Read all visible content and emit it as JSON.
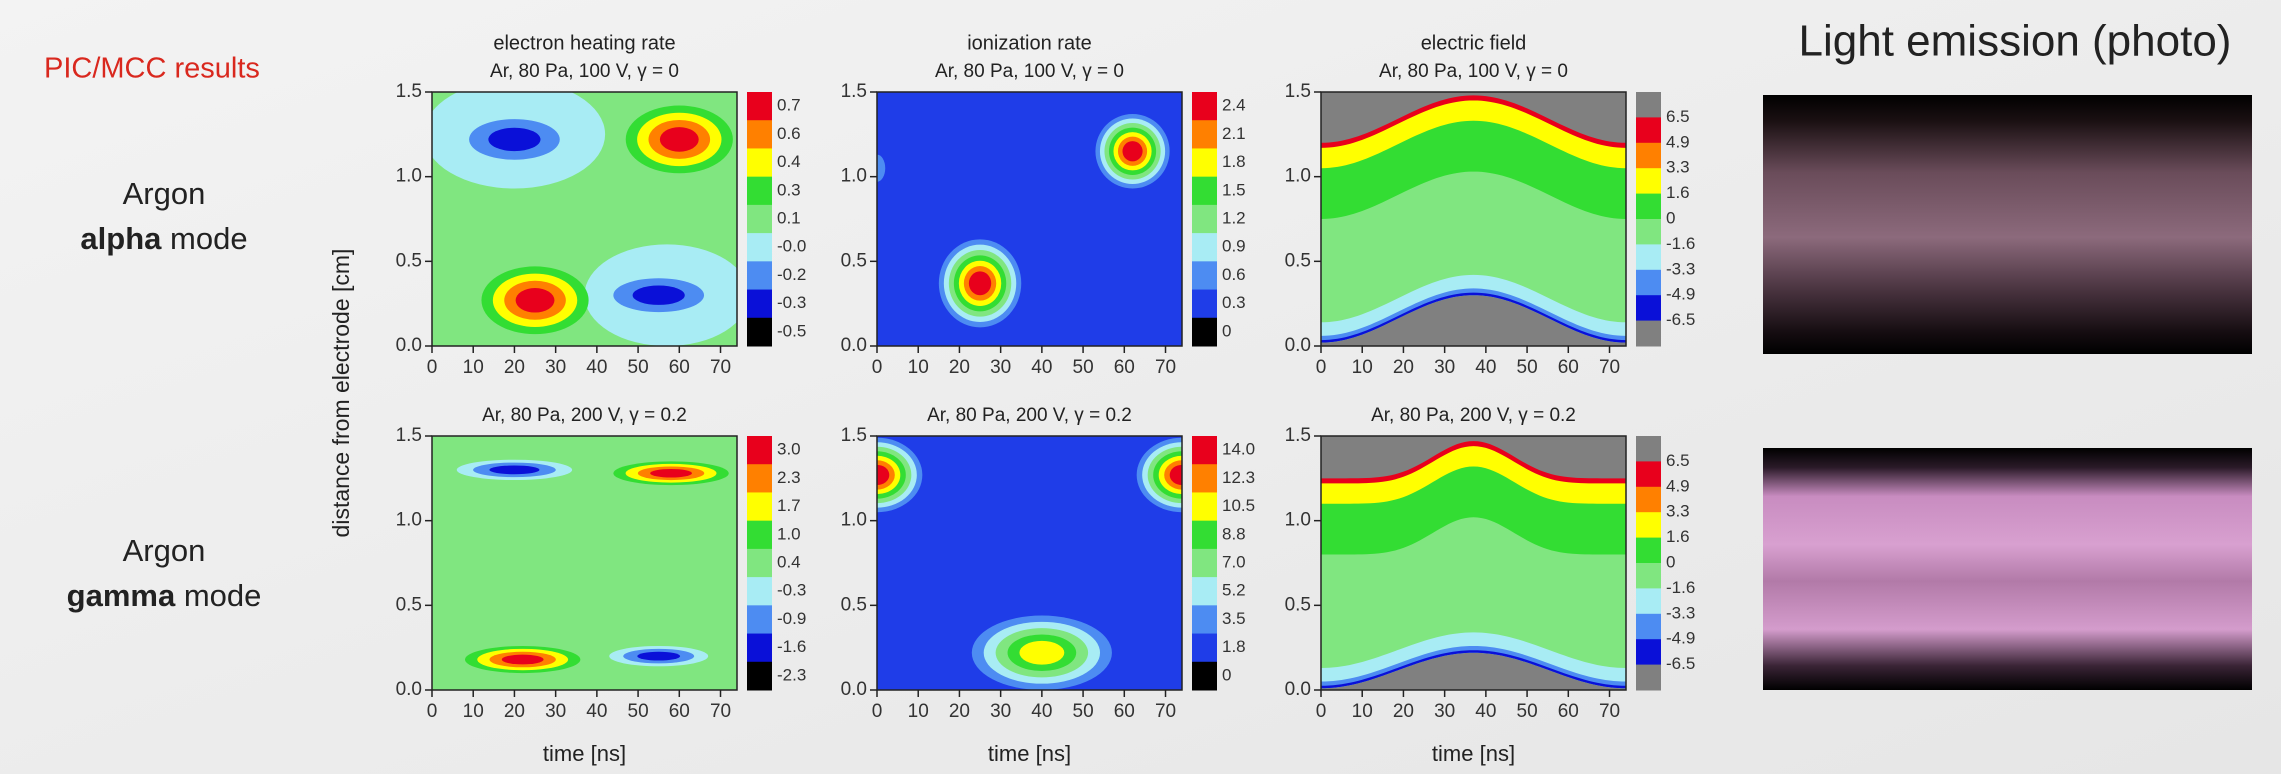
{
  "slide": {
    "label": "PIC/MCC results",
    "photo_title": "Light emission (photo)",
    "y_label": "distance from electrode [cm]",
    "rows": [
      {
        "gas": "Argon",
        "mode": "alpha",
        "suffix": "mode"
      },
      {
        "gas": "Argon",
        "mode": "gamma",
        "suffix": "mode"
      }
    ]
  },
  "chart_data": [
    {
      "type": "contour",
      "title": "electron heating rate",
      "subtitle": "Ar, 80 Pa, 100 V, γ = 0",
      "xlim": [
        0,
        74
      ],
      "xticks": [
        0,
        10,
        20,
        30,
        40,
        50,
        60,
        70
      ],
      "ylim": [
        0,
        1.5
      ],
      "yticks": [
        {
          "value": 0,
          "label": "0.0"
        },
        {
          "value": 0.5,
          "label": "0.5"
        },
        {
          "value": 1,
          "label": "1.0"
        },
        {
          "value": 1.5,
          "label": "1.5"
        }
      ],
      "colorbar": {
        "ticks": [
          0.7,
          0.6,
          0.4,
          0.3,
          0.1,
          "-0.0",
          -0.2,
          -0.3,
          -0.5
        ],
        "colors": [
          "#e8001c",
          "#ff8000",
          "#ffff00",
          "#33dd33",
          "#80e680",
          "#a8ecf4",
          "#4d8cf2",
          "#0a10d8",
          "#000000"
        ]
      }
    },
    {
      "type": "contour",
      "title": "ionization rate",
      "subtitle": "Ar, 80 Pa, 100 V, γ = 0",
      "xlim": [
        0,
        74
      ],
      "xticks": [
        0,
        10,
        20,
        30,
        40,
        50,
        60,
        70
      ],
      "ylim": [
        0,
        1.5
      ],
      "yticks": [
        {
          "value": 0,
          "label": "0.0"
        },
        {
          "value": 0.5,
          "label": "0.5"
        },
        {
          "value": 1,
          "label": "1.0"
        },
        {
          "value": 1.5,
          "label": "1.5"
        }
      ],
      "colorbar": {
        "ticks": [
          2.4,
          2.1,
          1.8,
          1.5,
          1.2,
          0.9,
          0.6,
          0.3,
          0
        ],
        "colors": [
          "#e8001c",
          "#ff8000",
          "#ffff00",
          "#33dd33",
          "#80e680",
          "#a8ecf4",
          "#4d8cf2",
          "#1f3de8",
          "#000000"
        ]
      }
    },
    {
      "type": "field",
      "title": "electric field",
      "subtitle": "Ar, 80 Pa, 100 V, γ = 0",
      "xlim": [
        0,
        74
      ],
      "xticks": [
        0,
        10,
        20,
        30,
        40,
        50,
        60,
        70
      ],
      "ylim": [
        0,
        1.5
      ],
      "yticks": [
        {
          "value": 0,
          "label": "0.0"
        },
        {
          "value": 0.5,
          "label": "0.5"
        },
        {
          "value": 1,
          "label": "1.0"
        },
        {
          "value": 1.5,
          "label": "1.5"
        }
      ],
      "colorbar": {
        "ticks": [
          6.5,
          4.9,
          3.3,
          1.6,
          0,
          -1.6,
          -3.3,
          -4.9,
          -6.5
        ],
        "colors": [
          "#808080",
          "#e8001c",
          "#ff8000",
          "#ffff00",
          "#33dd33",
          "#80e680",
          "#a8ecf4",
          "#4d8cf2",
          "#0a10d8",
          "#808080"
        ]
      }
    },
    {
      "type": "contour",
      "subtitle": "Ar, 80 Pa, 200 V, γ = 0.2",
      "x_label": "time [ns]",
      "xlim": [
        0,
        74
      ],
      "xticks": [
        0,
        10,
        20,
        30,
        40,
        50,
        60,
        70
      ],
      "ylim": [
        0,
        1.5
      ],
      "yticks": [
        {
          "value": 0,
          "label": "0.0"
        },
        {
          "value": 0.5,
          "label": "0.5"
        },
        {
          "value": 1,
          "label": "1.0"
        },
        {
          "value": 1.5,
          "label": "1.5"
        }
      ],
      "colorbar": {
        "ticks": [
          {
            "value": 3,
            "label": "3.0"
          },
          2.3,
          1.7,
          {
            "value": 1,
            "label": "1.0"
          },
          0.4,
          -0.3,
          -0.9,
          -1.6,
          -2.3
        ],
        "colors": [
          "#e8001c",
          "#ff8000",
          "#ffff00",
          "#33dd33",
          "#80e680",
          "#a8ecf4",
          "#4d8cf2",
          "#0a10d8",
          "#000000"
        ]
      }
    },
    {
      "type": "contour",
      "subtitle": "Ar, 80 Pa, 200 V, γ = 0.2",
      "x_label": "time [ns]",
      "xlim": [
        0,
        74
      ],
      "xticks": [
        0,
        10,
        20,
        30,
        40,
        50,
        60,
        70
      ],
      "ylim": [
        0,
        1.5
      ],
      "yticks": [
        {
          "value": 0,
          "label": "0.0"
        },
        {
          "value": 0.5,
          "label": "0.5"
        },
        {
          "value": 1,
          "label": "1.0"
        },
        {
          "value": 1.5,
          "label": "1.5"
        }
      ],
      "colorbar": {
        "ticks": [
          {
            "value": 14,
            "label": "14.0"
          },
          12.3,
          10.5,
          8.8,
          {
            "value": 7,
            "label": "7.0"
          },
          5.2,
          3.5,
          1.8,
          0
        ],
        "colors": [
          "#e8001c",
          "#ff8000",
          "#ffff00",
          "#33dd33",
          "#80e680",
          "#a8ecf4",
          "#4d8cf2",
          "#1f3de8",
          "#000000"
        ]
      }
    },
    {
      "type": "field",
      "subtitle": "Ar, 80 Pa, 200 V, γ = 0.2",
      "x_label": "time [ns]",
      "xlim": [
        0,
        74
      ],
      "xticks": [
        0,
        10,
        20,
        30,
        40,
        50,
        60,
        70
      ],
      "ylim": [
        0,
        1.5
      ],
      "yticks": [
        {
          "value": 0,
          "label": "0.0"
        },
        {
          "value": 0.5,
          "label": "0.5"
        },
        {
          "value": 1,
          "label": "1.0"
        },
        {
          "value": 1.5,
          "label": "1.5"
        }
      ],
      "colorbar": {
        "ticks": [
          6.5,
          4.9,
          3.3,
          1.6,
          0,
          -1.6,
          -3.3,
          -4.9,
          -6.5
        ],
        "colors": [
          "#808080",
          "#e8001c",
          "#ff8000",
          "#ffff00",
          "#33dd33",
          "#80e680",
          "#a8ecf4",
          "#4d8cf2",
          "#0a10d8",
          "#808080"
        ]
      }
    }
  ]
}
